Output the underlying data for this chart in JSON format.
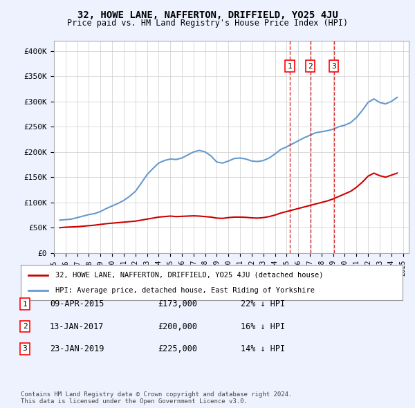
{
  "title": "32, HOWE LANE, NAFFERTON, DRIFFIELD, YO25 4JU",
  "subtitle": "Price paid vs. HM Land Registry's House Price Index (HPI)",
  "legend_line1": "32, HOWE LANE, NAFFERTON, DRIFFIELD, YO25 4JU (detached house)",
  "legend_line2": "HPI: Average price, detached house, East Riding of Yorkshire",
  "footer1": "Contains HM Land Registry data © Crown copyright and database right 2024.",
  "footer2": "This data is licensed under the Open Government Licence v3.0.",
  "purchases": [
    {
      "num": 1,
      "date": "09-APR-2015",
      "price": "£173,000",
      "pct": "22% ↓ HPI",
      "year": 2015.27
    },
    {
      "num": 2,
      "date": "13-JAN-2017",
      "price": "£200,000",
      "pct": "16% ↓ HPI",
      "year": 2017.04
    },
    {
      "num": 3,
      "date": "23-JAN-2019",
      "price": "£225,000",
      "pct": "14% ↓ HPI",
      "year": 2019.06
    }
  ],
  "hpi_color": "#6699cc",
  "property_color": "#cc0000",
  "vline_color": "#cc0000",
  "background_color": "#eef2ff",
  "plot_bg": "#ffffff",
  "grid_color": "#cccccc",
  "ylim": [
    0,
    420000
  ],
  "xlim": [
    1995,
    2025.5
  ],
  "yticks": [
    0,
    50000,
    100000,
    150000,
    200000,
    250000,
    300000,
    350000,
    400000
  ],
  "ytick_labels": [
    "£0",
    "£50K",
    "£100K",
    "£150K",
    "£200K",
    "£250K",
    "£300K",
    "£350K",
    "£400K"
  ],
  "hpi_data": {
    "years": [
      1995.5,
      1996,
      1996.5,
      1997,
      1997.5,
      1998,
      1998.5,
      1999,
      1999.5,
      2000,
      2000.5,
      2001,
      2001.5,
      2002,
      2002.5,
      2003,
      2003.5,
      2004,
      2004.5,
      2005,
      2005.5,
      2006,
      2006.5,
      2007,
      2007.5,
      2008,
      2008.5,
      2009,
      2009.5,
      2010,
      2010.5,
      2011,
      2011.5,
      2012,
      2012.5,
      2013,
      2013.5,
      2014,
      2014.5,
      2015,
      2015.5,
      2016,
      2016.5,
      2017,
      2017.5,
      2018,
      2018.5,
      2019,
      2019.5,
      2020,
      2020.5,
      2021,
      2021.5,
      2022,
      2022.5,
      2023,
      2023.5,
      2024,
      2024.5
    ],
    "values": [
      65000,
      66000,
      67000,
      70000,
      73000,
      76000,
      78000,
      82000,
      88000,
      93000,
      98000,
      104000,
      112000,
      122000,
      138000,
      155000,
      167000,
      178000,
      183000,
      186000,
      185000,
      188000,
      194000,
      200000,
      203000,
      200000,
      192000,
      180000,
      178000,
      182000,
      187000,
      188000,
      186000,
      182000,
      181000,
      183000,
      188000,
      196000,
      205000,
      210000,
      216000,
      222000,
      228000,
      233000,
      238000,
      240000,
      242000,
      245000,
      250000,
      253000,
      258000,
      268000,
      282000,
      298000,
      305000,
      298000,
      295000,
      300000,
      308000
    ]
  },
  "property_data": {
    "years": [
      1995.5,
      1996,
      1996.5,
      1997,
      1997.5,
      1998,
      1998.5,
      1999,
      1999.5,
      2000,
      2000.5,
      2001,
      2001.5,
      2002,
      2002.5,
      2003,
      2003.5,
      2004,
      2004.5,
      2005,
      2005.5,
      2006,
      2006.5,
      2007,
      2007.5,
      2008,
      2008.5,
      2009,
      2009.5,
      2010,
      2010.5,
      2011,
      2011.5,
      2012,
      2012.5,
      2013,
      2013.5,
      2014,
      2014.5,
      2015,
      2015.5,
      2016,
      2016.5,
      2017,
      2017.5,
      2018,
      2018.5,
      2019,
      2019.5,
      2020,
      2020.5,
      2021,
      2021.5,
      2022,
      2022.5,
      2023,
      2023.5,
      2024,
      2024.5
    ],
    "values": [
      50000,
      51000,
      51500,
      52000,
      53000,
      54000,
      55000,
      56500,
      58000,
      59000,
      60000,
      61000,
      62000,
      63000,
      65000,
      67000,
      69000,
      71000,
      72000,
      73000,
      72000,
      72500,
      73000,
      73500,
      73000,
      72000,
      71000,
      69000,
      68500,
      70000,
      71000,
      71000,
      70500,
      69500,
      69000,
      70000,
      72000,
      75000,
      79000,
      82000,
      85000,
      88000,
      91000,
      94000,
      97000,
      100000,
      103000,
      107000,
      112000,
      117000,
      122000,
      130000,
      140000,
      152000,
      158000,
      153000,
      150000,
      154000,
      158000
    ]
  }
}
